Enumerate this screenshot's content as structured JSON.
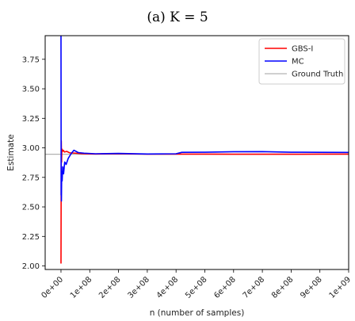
{
  "chart_data": {
    "type": "line",
    "title": "(a) K = 5",
    "xlabel": "n (number of samples)",
    "ylabel": "Estimate",
    "xlim": [
      -55000000,
      1000000000
    ],
    "ylim": [
      1.97,
      3.95
    ],
    "x_ticks": [
      0,
      100000000,
      200000000,
      300000000,
      400000000,
      500000000,
      600000000,
      700000000,
      800000000,
      900000000,
      1000000000
    ],
    "x_tick_labels": [
      "0e+00",
      "1e+08",
      "2e+08",
      "3e+08",
      "4e+08",
      "5e+08",
      "6e+08",
      "7e+08",
      "8e+08",
      "9e+08",
      "1e+09"
    ],
    "y_ticks": [
      2.0,
      2.25,
      2.5,
      2.75,
      3.0,
      3.25,
      3.5,
      3.75
    ],
    "y_tick_labels": [
      "2.00",
      "2.25",
      "2.50",
      "2.75",
      "3.00",
      "3.25",
      "3.50",
      "3.75"
    ],
    "grid": false,
    "legend_position": "top-right",
    "ground_truth": {
      "name": "Ground Truth",
      "value": 2.945,
      "color": "#808080"
    },
    "series": [
      {
        "name": "GBS-I",
        "color": "#ff0000",
        "x": [
          0,
          500000,
          1000000,
          2000000,
          3000000,
          5000000,
          8000000,
          12000000,
          20000000,
          30000000,
          50000000,
          80000000,
          120000000,
          200000000,
          300000000,
          400000000,
          500000000,
          600000000,
          700000000,
          800000000,
          900000000,
          1000000000
        ],
        "y": [
          2.02,
          2.55,
          3.06,
          2.88,
          2.99,
          2.97,
          2.98,
          2.965,
          2.97,
          2.958,
          2.955,
          2.95,
          2.948,
          2.95,
          2.947,
          2.947,
          2.947,
          2.946,
          2.946,
          2.946,
          2.947,
          2.947
        ]
      },
      {
        "name": "MC",
        "color": "#0000ff",
        "x": [
          0,
          300000,
          600000,
          1000000,
          1500000,
          2500000,
          4000000,
          6000000,
          9000000,
          13000000,
          18000000,
          25000000,
          35000000,
          45000000,
          60000000,
          80000000,
          120000000,
          200000000,
          300000000,
          400000000,
          420000000,
          500000000,
          600000000,
          700000000,
          800000000,
          900000000,
          1000000000
        ],
        "y": [
          3.95,
          3.3,
          2.6,
          2.7,
          2.55,
          2.8,
          2.72,
          2.84,
          2.78,
          2.88,
          2.86,
          2.91,
          2.95,
          2.98,
          2.96,
          2.955,
          2.95,
          2.953,
          2.948,
          2.95,
          2.962,
          2.963,
          2.967,
          2.968,
          2.963,
          2.962,
          2.961
        ]
      }
    ]
  }
}
